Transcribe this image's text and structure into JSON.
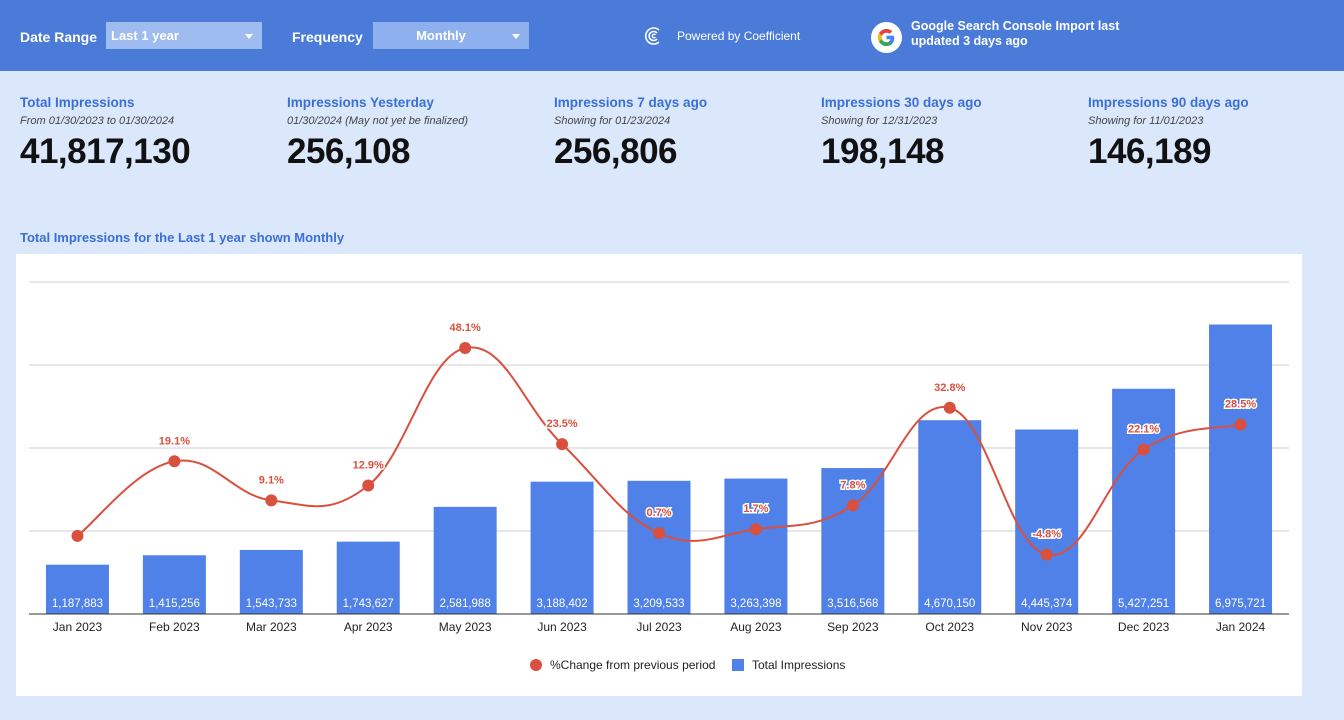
{
  "header": {
    "date_range_label": "Date Range",
    "date_range_value": "Last 1 year",
    "frequency_label": "Frequency",
    "frequency_value": "Monthly",
    "powered_by": "Powered by Coefficient",
    "import_status": "Google Search Console Import last updated 3 days ago"
  },
  "kpis": [
    {
      "title": "Total Impressions",
      "subtitle": "From 01/30/2023 to 01/30/2024",
      "value": "41,817,130"
    },
    {
      "title": "Impressions Yesterday",
      "subtitle": "01/30/2024 (May not yet be finalized)",
      "value": "256,108"
    },
    {
      "title": "Impressions 7 days ago",
      "subtitle": "Showing for 01/23/2024",
      "value": "256,806"
    },
    {
      "title": "Impressions 30 days ago",
      "subtitle": "Showing for 12/31/2023",
      "value": "198,148"
    },
    {
      "title": "Impressions 90 days ago",
      "subtitle": "Showing for 11/01/2023",
      "value": "146,189"
    }
  ],
  "chart_data": {
    "type": "bar",
    "title": "Total Impressions for the Last 1 year shown Monthly",
    "categories": [
      "Jan 2023",
      "Feb 2023",
      "Mar 2023",
      "Apr 2023",
      "May 2023",
      "Jun 2023",
      "Jul 2023",
      "Aug 2023",
      "Sep 2023",
      "Oct 2023",
      "Nov 2023",
      "Dec 2023",
      "Jan 2024"
    ],
    "series": [
      {
        "name": "Total Impressions",
        "type": "bar",
        "color": "#4f81e8",
        "values": [
          1187883,
          1415256,
          1543733,
          1743627,
          2581988,
          3188402,
          3209533,
          3263398,
          3516568,
          4670150,
          4445374,
          5427251,
          6975721
        ],
        "labels": [
          "1,187,883",
          "1,415,256",
          "1,543,733",
          "1,743,627",
          "2,581,988",
          "3,188,402",
          "3,209,533",
          "3,263,398",
          "3,516,568",
          "4,670,150",
          "4,445,374",
          "5,427,251",
          "6,975,721"
        ]
      },
      {
        "name": "%Change from previous period",
        "type": "line",
        "color": "#d9503f",
        "values": [
          null,
          19.1,
          9.1,
          12.9,
          48.1,
          23.5,
          0.7,
          1.7,
          7.8,
          32.8,
          -4.8,
          22.1,
          28.5
        ],
        "labels": [
          "",
          "19.1%",
          "9.1%",
          "12.9%",
          "48.1%",
          "23.5%",
          "0.7%",
          "1.7%",
          "7.8%",
          "32.8%",
          "-4.8%",
          "22.1%",
          "28.5%"
        ]
      }
    ],
    "ylim": [
      0,
      8000000
    ],
    "y2lim": [
      -20,
      65
    ],
    "grid": true,
    "legend_position": "bottom-center"
  }
}
